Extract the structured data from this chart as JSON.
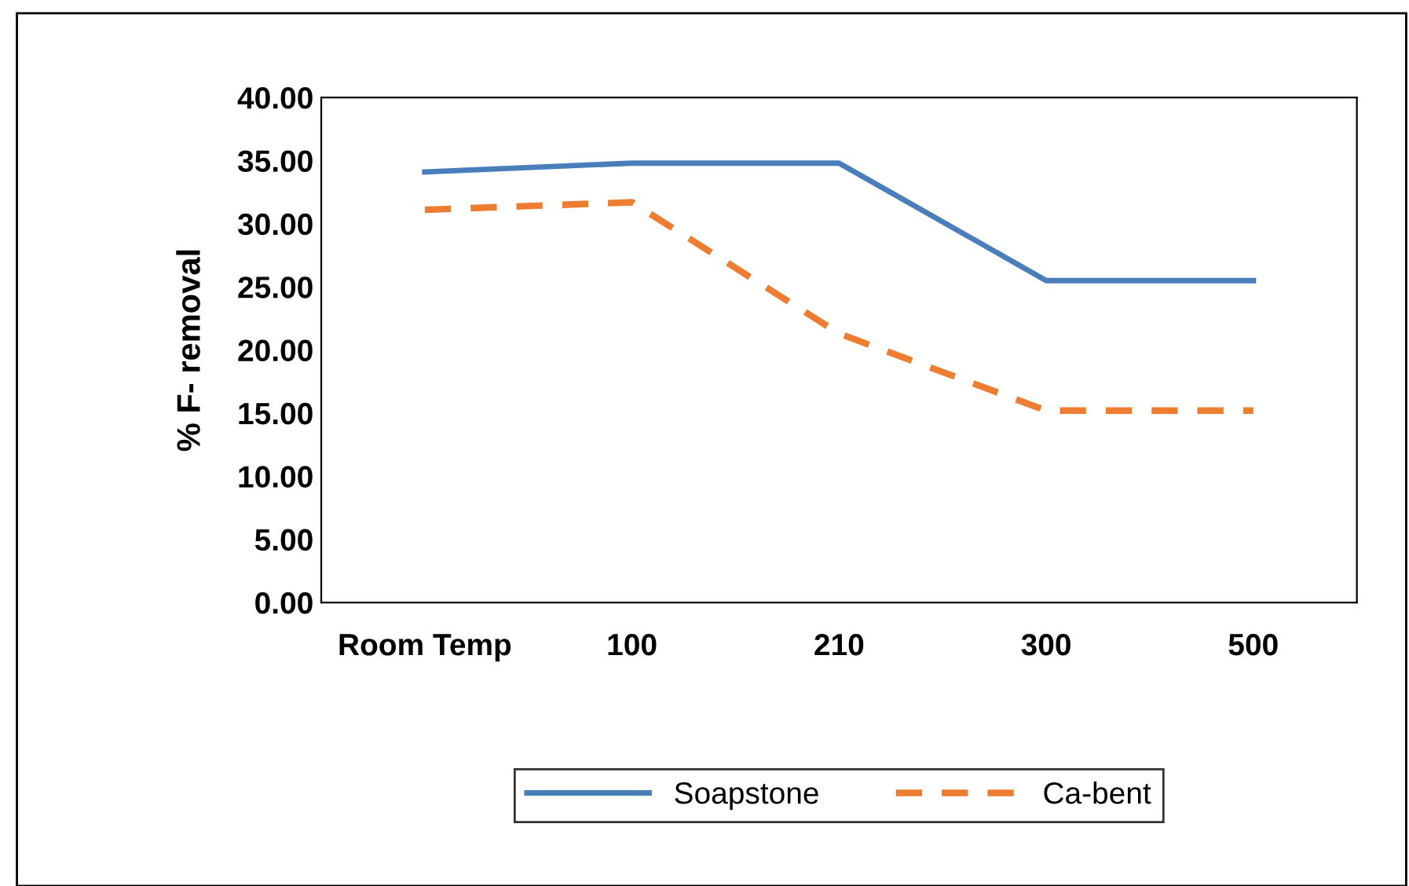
{
  "chart_data": {
    "type": "line",
    "ylabel": "% F- removal",
    "categories": [
      "Room Temp",
      "100",
      "210",
      "300",
      "500"
    ],
    "series": [
      {
        "name": "Soapstone",
        "color": "#4a7ebb",
        "line_style": "solid",
        "values": [
          34.1,
          34.8,
          34.8,
          25.5,
          25.5
        ]
      },
      {
        "name": "Ca-bent",
        "color": "#ed7d31",
        "line_style": "dashed",
        "values": [
          31.1,
          31.7,
          21.3,
          15.2,
          15.2
        ]
      }
    ],
    "ylim": [
      0,
      40
    ],
    "yticks": [
      {
        "value": 0,
        "label": "0.00"
      },
      {
        "value": 5,
        "label": "5.00"
      },
      {
        "value": 10,
        "label": "10.00"
      },
      {
        "value": 15,
        "label": "15.00"
      },
      {
        "value": 20,
        "label": "20.00"
      },
      {
        "value": 25,
        "label": "25.00"
      },
      {
        "value": 30,
        "label": "30.00"
      },
      {
        "value": 35,
        "label": "35.00"
      },
      {
        "value": 40,
        "label": "40.00"
      }
    ],
    "grid": false,
    "legend": "bottom",
    "marker": "none"
  }
}
